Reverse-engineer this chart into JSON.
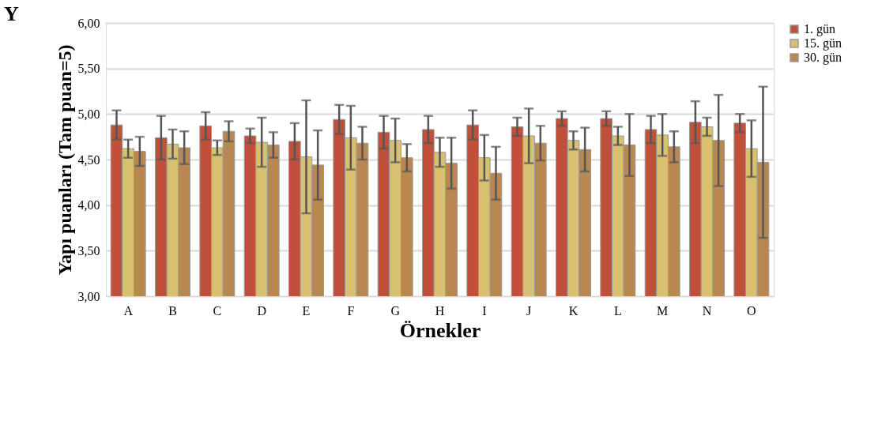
{
  "chart_data": {
    "type": "bar",
    "title": "Y",
    "xlabel": "Örnekler",
    "ylabel": "Yapı puanları  (Tam puan=5)",
    "categories": [
      "A",
      "B",
      "C",
      "D",
      "E",
      "F",
      "G",
      "H",
      "I",
      "J",
      "K",
      "L",
      "M",
      "N",
      "O"
    ],
    "series": [
      {
        "name": "1. gün",
        "color": "#c0503a",
        "values": [
          4.88,
          4.74,
          4.87,
          4.76,
          4.7,
          4.94,
          4.8,
          4.83,
          4.88,
          4.86,
          4.95,
          4.95,
          4.83,
          4.91,
          4.9
        ],
        "errors": [
          0.16,
          0.24,
          0.15,
          0.08,
          0.2,
          0.16,
          0.18,
          0.15,
          0.16,
          0.1,
          0.08,
          0.08,
          0.15,
          0.23,
          0.1
        ]
      },
      {
        "name": "15. gün",
        "color": "#d8c070",
        "values": [
          4.62,
          4.67,
          4.63,
          4.69,
          4.53,
          4.74,
          4.71,
          4.58,
          4.52,
          4.76,
          4.71,
          4.76,
          4.77,
          4.86,
          4.62
        ],
        "errors": [
          0.1,
          0.16,
          0.08,
          0.27,
          0.62,
          0.35,
          0.24,
          0.16,
          0.25,
          0.3,
          0.1,
          0.1,
          0.23,
          0.1,
          0.31
        ]
      },
      {
        "name": "30. gün",
        "color": "#b88850",
        "values": [
          4.59,
          4.63,
          4.81,
          4.66,
          4.44,
          4.68,
          4.52,
          4.46,
          4.35,
          4.68,
          4.61,
          4.66,
          4.64,
          4.71,
          4.47
        ],
        "errors": [
          0.16,
          0.18,
          0.11,
          0.14,
          0.38,
          0.18,
          0.15,
          0.28,
          0.29,
          0.19,
          0.24,
          0.34,
          0.17,
          0.5,
          0.83
        ]
      }
    ],
    "ylim": [
      3,
      6
    ],
    "yticks": [
      {
        "value": 3,
        "label": "3,00"
      },
      {
        "value": 3.5,
        "label": "3,50"
      },
      {
        "value": 4,
        "label": "4,00"
      },
      {
        "value": 4.5,
        "label": "4,50"
      },
      {
        "value": 5,
        "label": "5,00"
      },
      {
        "value": 5.5,
        "label": "5,50"
      },
      {
        "value": 6,
        "label": "6,00"
      }
    ],
    "grid": "y",
    "legend": "right"
  }
}
